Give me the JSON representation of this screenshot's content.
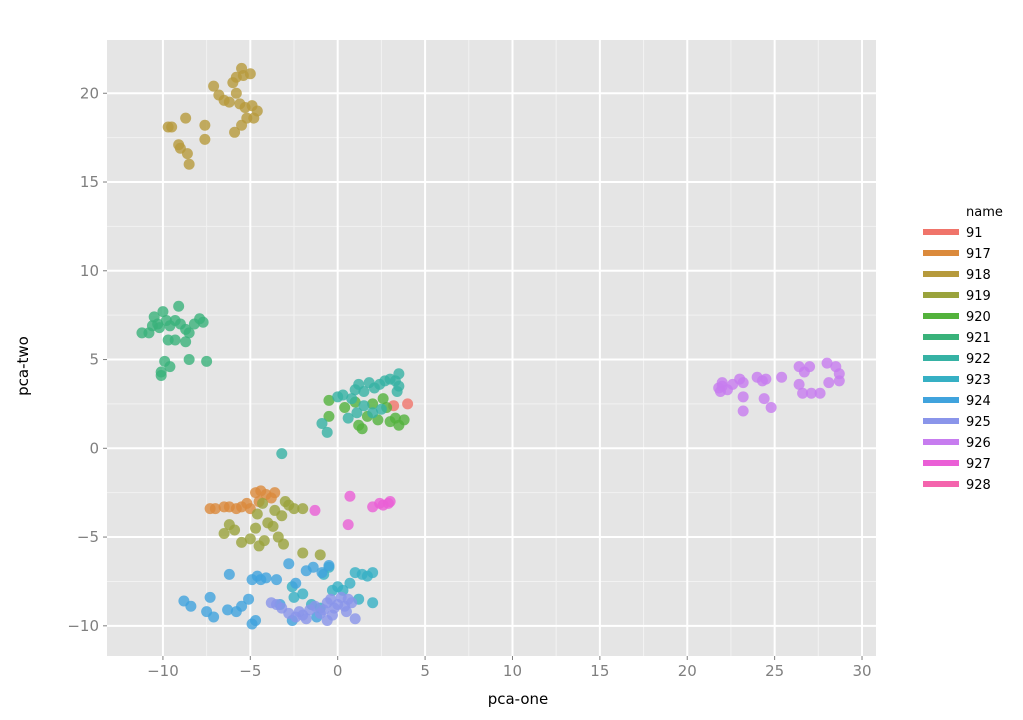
{
  "chart_data": {
    "type": "scatter",
    "xlabel": "pca-one",
    "ylabel": "pca-two",
    "xlim": [
      -13.2,
      30.8
    ],
    "ylim": [
      -11.7,
      23.0
    ],
    "xticks": [
      -10,
      -5,
      0,
      5,
      10,
      15,
      20,
      25,
      30
    ],
    "xtick_labels": [
      "−10",
      "−5",
      "0",
      "5",
      "10",
      "15",
      "20",
      "25",
      "30"
    ],
    "yticks": [
      -10,
      -5,
      0,
      5,
      10,
      15,
      20
    ],
    "ytick_labels": [
      "−10",
      "−5",
      "0",
      "5",
      "10",
      "15",
      "20"
    ],
    "grid": true,
    "legend_position": "right",
    "legend_title": "name",
    "series": [
      {
        "name": "91",
        "color": "#f0746a",
        "points": [
          [
            4.0,
            2.5
          ],
          [
            3.2,
            2.4
          ]
        ]
      },
      {
        "name": "917",
        "color": "#db8a3c",
        "points": [
          [
            -7.3,
            -3.4
          ],
          [
            -7.0,
            -3.4
          ],
          [
            -6.5,
            -3.3
          ],
          [
            -6.2,
            -3.3
          ],
          [
            -5.8,
            -3.4
          ],
          [
            -5.5,
            -3.3
          ],
          [
            -5.0,
            -3.4
          ],
          [
            -4.7,
            -2.5
          ],
          [
            -4.4,
            -2.4
          ],
          [
            -4.1,
            -2.6
          ],
          [
            -3.8,
            -2.8
          ],
          [
            -3.6,
            -2.5
          ],
          [
            -4.5,
            -3.0
          ],
          [
            -5.2,
            -3.1
          ]
        ]
      },
      {
        "name": "918",
        "color": "#b69a3c",
        "points": [
          [
            -5.5,
            21.4
          ],
          [
            -5.8,
            20.9
          ],
          [
            -5.0,
            21.1
          ],
          [
            -6.0,
            20.6
          ],
          [
            -7.1,
            20.4
          ],
          [
            -6.8,
            19.9
          ],
          [
            -6.5,
            19.6
          ],
          [
            -5.6,
            19.4
          ],
          [
            -4.9,
            19.3
          ],
          [
            -4.6,
            19.0
          ],
          [
            -5.3,
            19.2
          ],
          [
            -6.2,
            19.5
          ],
          [
            -5.8,
            20.0
          ],
          [
            -5.2,
            18.6
          ],
          [
            -5.5,
            18.2
          ],
          [
            -4.8,
            18.6
          ],
          [
            -5.9,
            17.8
          ],
          [
            -8.7,
            18.6
          ],
          [
            -9.7,
            18.1
          ],
          [
            -9.5,
            18.1
          ],
          [
            -7.6,
            18.2
          ],
          [
            -7.6,
            17.4
          ],
          [
            -9.1,
            17.1
          ],
          [
            -9.0,
            16.9
          ],
          [
            -8.6,
            16.6
          ],
          [
            -8.5,
            16.0
          ],
          [
            -5.4,
            21.0
          ]
        ]
      },
      {
        "name": "919",
        "color": "#9aa33c",
        "points": [
          [
            -6.5,
            -4.8
          ],
          [
            -6.2,
            -4.3
          ],
          [
            -5.9,
            -4.6
          ],
          [
            -5.5,
            -5.3
          ],
          [
            -5.0,
            -5.1
          ],
          [
            -4.7,
            -4.5
          ],
          [
            -4.5,
            -5.5
          ],
          [
            -4.2,
            -5.2
          ],
          [
            -4.0,
            -4.2
          ],
          [
            -3.7,
            -4.4
          ],
          [
            -3.4,
            -5.0
          ],
          [
            -3.2,
            -3.8
          ],
          [
            -3.0,
            -3.0
          ],
          [
            -2.8,
            -3.2
          ],
          [
            -2.5,
            -3.4
          ],
          [
            -2.0,
            -3.4
          ],
          [
            -3.6,
            -3.5
          ],
          [
            -4.3,
            -3.1
          ],
          [
            -4.6,
            -3.7
          ],
          [
            -3.1,
            -5.4
          ],
          [
            -2.0,
            -5.9
          ],
          [
            -1.0,
            -6.0
          ]
        ]
      },
      {
        "name": "920",
        "color": "#53b23c",
        "points": [
          [
            -0.5,
            1.8
          ],
          [
            0.4,
            2.3
          ],
          [
            1.0,
            2.6
          ],
          [
            1.4,
            1.1
          ],
          [
            1.7,
            1.8
          ],
          [
            2.0,
            2.5
          ],
          [
            2.3,
            1.6
          ],
          [
            2.6,
            2.8
          ],
          [
            3.0,
            1.5
          ],
          [
            3.3,
            1.7
          ],
          [
            3.5,
            1.3
          ],
          [
            3.8,
            1.6
          ],
          [
            2.8,
            2.3
          ],
          [
            1.2,
            1.3
          ],
          [
            -0.5,
            2.7
          ]
        ]
      },
      {
        "name": "921",
        "color": "#39b27a",
        "points": [
          [
            -11.2,
            6.5
          ],
          [
            -10.8,
            6.5
          ],
          [
            -10.5,
            7.4
          ],
          [
            -10.3,
            7.0
          ],
          [
            -10.0,
            7.7
          ],
          [
            -9.8,
            7.2
          ],
          [
            -9.6,
            6.9
          ],
          [
            -9.3,
            7.2
          ],
          [
            -9.1,
            8.0
          ],
          [
            -9.0,
            7.0
          ],
          [
            -8.7,
            6.7
          ],
          [
            -8.5,
            6.5
          ],
          [
            -8.2,
            7.0
          ],
          [
            -7.9,
            7.3
          ],
          [
            -7.7,
            7.1
          ],
          [
            -9.3,
            6.1
          ],
          [
            -8.7,
            6.0
          ],
          [
            -9.9,
            4.9
          ],
          [
            -9.6,
            4.6
          ],
          [
            -10.1,
            4.1
          ],
          [
            -10.1,
            4.3
          ],
          [
            -8.5,
            5.0
          ],
          [
            -7.5,
            4.9
          ],
          [
            -10.6,
            6.9
          ],
          [
            -10.2,
            6.8
          ],
          [
            -9.7,
            6.1
          ]
        ]
      },
      {
        "name": "922",
        "color": "#36b2a4",
        "points": [
          [
            -0.6,
            0.9
          ],
          [
            -0.9,
            1.4
          ],
          [
            0.0,
            2.9
          ],
          [
            0.3,
            3.0
          ],
          [
            0.6,
            1.7
          ],
          [
            0.8,
            2.8
          ],
          [
            1.0,
            3.3
          ],
          [
            1.2,
            3.6
          ],
          [
            1.5,
            3.2
          ],
          [
            1.8,
            3.7
          ],
          [
            2.1,
            3.4
          ],
          [
            2.4,
            3.6
          ],
          [
            2.7,
            3.8
          ],
          [
            3.0,
            3.9
          ],
          [
            3.3,
            3.8
          ],
          [
            3.5,
            4.2
          ],
          [
            3.5,
            3.5
          ],
          [
            3.4,
            3.2
          ],
          [
            2.5,
            2.2
          ],
          [
            2.0,
            2.0
          ],
          [
            1.5,
            2.4
          ],
          [
            1.1,
            2.0
          ],
          [
            -3.2,
            -0.3
          ]
        ]
      },
      {
        "name": "923",
        "color": "#36b0c4",
        "points": [
          [
            -2.6,
            -7.8
          ],
          [
            -2.5,
            -8.4
          ],
          [
            -2.0,
            -8.2
          ],
          [
            -1.5,
            -8.8
          ],
          [
            -1.0,
            -9.0
          ],
          [
            -0.8,
            -7.1
          ],
          [
            -0.5,
            -6.7
          ],
          [
            0.0,
            -7.8
          ],
          [
            0.3,
            -8.0
          ],
          [
            0.7,
            -7.6
          ],
          [
            1.0,
            -7.0
          ],
          [
            1.4,
            -7.1
          ],
          [
            1.7,
            -7.2
          ],
          [
            2.0,
            -7.0
          ],
          [
            2.0,
            -8.7
          ],
          [
            1.2,
            -8.5
          ],
          [
            -0.3,
            -8.0
          ]
        ]
      },
      {
        "name": "924",
        "color": "#40a3dd",
        "points": [
          [
            -8.8,
            -8.6
          ],
          [
            -8.4,
            -8.9
          ],
          [
            -7.5,
            -9.2
          ],
          [
            -7.3,
            -8.4
          ],
          [
            -7.1,
            -9.5
          ],
          [
            -6.3,
            -9.1
          ],
          [
            -6.2,
            -7.1
          ],
          [
            -5.8,
            -9.2
          ],
          [
            -5.5,
            -8.9
          ],
          [
            -5.1,
            -8.5
          ],
          [
            -4.9,
            -7.4
          ],
          [
            -4.6,
            -7.2
          ],
          [
            -4.4,
            -7.4
          ],
          [
            -4.1,
            -7.3
          ],
          [
            -3.5,
            -7.4
          ],
          [
            -3.3,
            -8.8
          ],
          [
            -2.8,
            -6.5
          ],
          [
            -2.4,
            -7.6
          ],
          [
            -1.8,
            -6.9
          ],
          [
            -1.4,
            -6.7
          ],
          [
            -0.9,
            -7.0
          ],
          [
            -0.5,
            -6.6
          ],
          [
            -4.9,
            -9.9
          ],
          [
            -4.7,
            -9.7
          ],
          [
            -2.6,
            -9.7
          ],
          [
            -1.2,
            -9.5
          ]
        ]
      },
      {
        "name": "925",
        "color": "#8a95ea",
        "points": [
          [
            -3.8,
            -8.7
          ],
          [
            -3.5,
            -8.8
          ],
          [
            -3.2,
            -9.0
          ],
          [
            -2.8,
            -9.3
          ],
          [
            -2.4,
            -9.5
          ],
          [
            -2.2,
            -9.2
          ],
          [
            -2.0,
            -9.4
          ],
          [
            -1.6,
            -9.1
          ],
          [
            -1.3,
            -8.9
          ],
          [
            -1.0,
            -9.3
          ],
          [
            -0.8,
            -9.1
          ],
          [
            -0.6,
            -8.7
          ],
          [
            -0.4,
            -8.5
          ],
          [
            -0.2,
            -9.0
          ],
          [
            0.0,
            -8.8
          ],
          [
            0.2,
            -8.4
          ],
          [
            0.4,
            -8.9
          ],
          [
            0.6,
            -8.5
          ],
          [
            0.8,
            -8.7
          ],
          [
            1.0,
            -9.6
          ],
          [
            -0.6,
            -9.7
          ],
          [
            -0.3,
            -9.4
          ],
          [
            0.5,
            -9.2
          ],
          [
            -1.8,
            -9.6
          ]
        ]
      },
      {
        "name": "926",
        "color": "#c77cef",
        "points": [
          [
            21.8,
            3.4
          ],
          [
            22.0,
            3.7
          ],
          [
            22.3,
            3.3
          ],
          [
            22.6,
            3.6
          ],
          [
            23.0,
            3.9
          ],
          [
            23.2,
            3.7
          ],
          [
            23.2,
            2.9
          ],
          [
            23.2,
            2.1
          ],
          [
            24.0,
            4.0
          ],
          [
            24.3,
            3.8
          ],
          [
            24.5,
            3.9
          ],
          [
            24.4,
            2.8
          ],
          [
            24.8,
            2.3
          ],
          [
            25.4,
            4.0
          ],
          [
            26.4,
            4.6
          ],
          [
            26.7,
            4.3
          ],
          [
            27.0,
            4.6
          ],
          [
            26.4,
            3.6
          ],
          [
            26.6,
            3.1
          ],
          [
            27.1,
            3.1
          ],
          [
            27.6,
            3.1
          ],
          [
            28.0,
            4.8
          ],
          [
            28.5,
            4.6
          ],
          [
            28.7,
            4.2
          ],
          [
            28.7,
            3.8
          ],
          [
            28.1,
            3.7
          ],
          [
            21.9,
            3.2
          ],
          [
            22.0,
            3.5
          ]
        ]
      },
      {
        "name": "927",
        "color": "#ea5fd6",
        "points": [
          [
            0.7,
            -2.7
          ],
          [
            0.6,
            -4.3
          ],
          [
            2.0,
            -3.3
          ],
          [
            2.4,
            -3.1
          ],
          [
            2.6,
            -3.2
          ],
          [
            2.9,
            -3.1
          ],
          [
            3.0,
            -3.0
          ],
          [
            -1.3,
            -3.5
          ]
        ]
      },
      {
        "name": "928",
        "color": "#f464ad",
        "points": []
      }
    ]
  }
}
